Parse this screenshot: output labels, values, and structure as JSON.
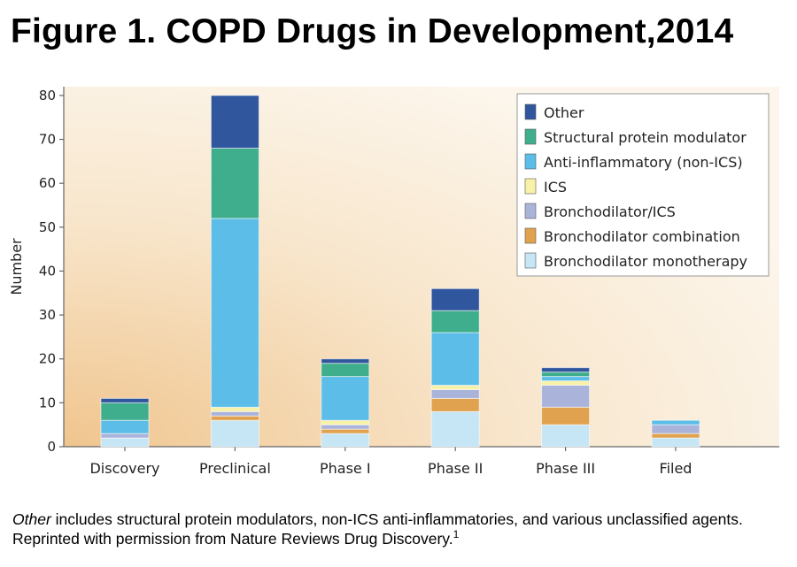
{
  "figure": {
    "title": "Figure 1. COPD Drugs in Development,2014",
    "caption_italic": "Other",
    "caption_rest": " includes structural protein modulators, non-ICS anti-inflammatories, and various unclassified agents. Reprinted with permission from Nature Reviews Drug Discovery.",
    "caption_superscript": "1"
  },
  "chart_data": {
    "type": "bar",
    "stacked": true,
    "ylabel": "Number",
    "xlabel": "",
    "ylim": [
      0,
      82
    ],
    "yticks": [
      0,
      10,
      20,
      30,
      40,
      50,
      60,
      70,
      80
    ],
    "grid": false,
    "legend_position": "top-right",
    "categories": [
      "Discovery",
      "Preclinical",
      "Phase I",
      "Phase II",
      "Phase III",
      "Filed"
    ],
    "series": [
      {
        "name": "Bronchodilator monotherapy",
        "color": "#c6e6f6",
        "values": [
          2,
          6,
          3,
          8,
          5,
          2
        ]
      },
      {
        "name": "Bronchodilator combination",
        "color": "#e0a24f",
        "values": [
          0,
          1,
          1,
          3,
          4,
          1
        ]
      },
      {
        "name": "Bronchodilator/ICS",
        "color": "#aab3da",
        "values": [
          1,
          1,
          1,
          2,
          5,
          2
        ]
      },
      {
        "name": "ICS",
        "color": "#f8f1a8",
        "values": [
          0,
          1,
          1,
          1,
          1,
          0
        ]
      },
      {
        "name": "Anti-inflammatory (non-ICS)",
        "color": "#5bbde8",
        "values": [
          3,
          43,
          10,
          12,
          1,
          1
        ]
      },
      {
        "name": "Structural protein modulator",
        "color": "#3fae8d",
        "values": [
          4,
          16,
          3,
          5,
          1,
          0
        ]
      },
      {
        "name": "Other",
        "color": "#30569d",
        "values": [
          1,
          12,
          1,
          5,
          1,
          0
        ]
      }
    ],
    "legend_order": [
      "Other",
      "Structural protein modulator",
      "Anti-inflammatory (non-ICS)",
      "ICS",
      "Bronchodilator/ICS",
      "Bronchodilator combination",
      "Bronchodilator monotherapy"
    ]
  }
}
